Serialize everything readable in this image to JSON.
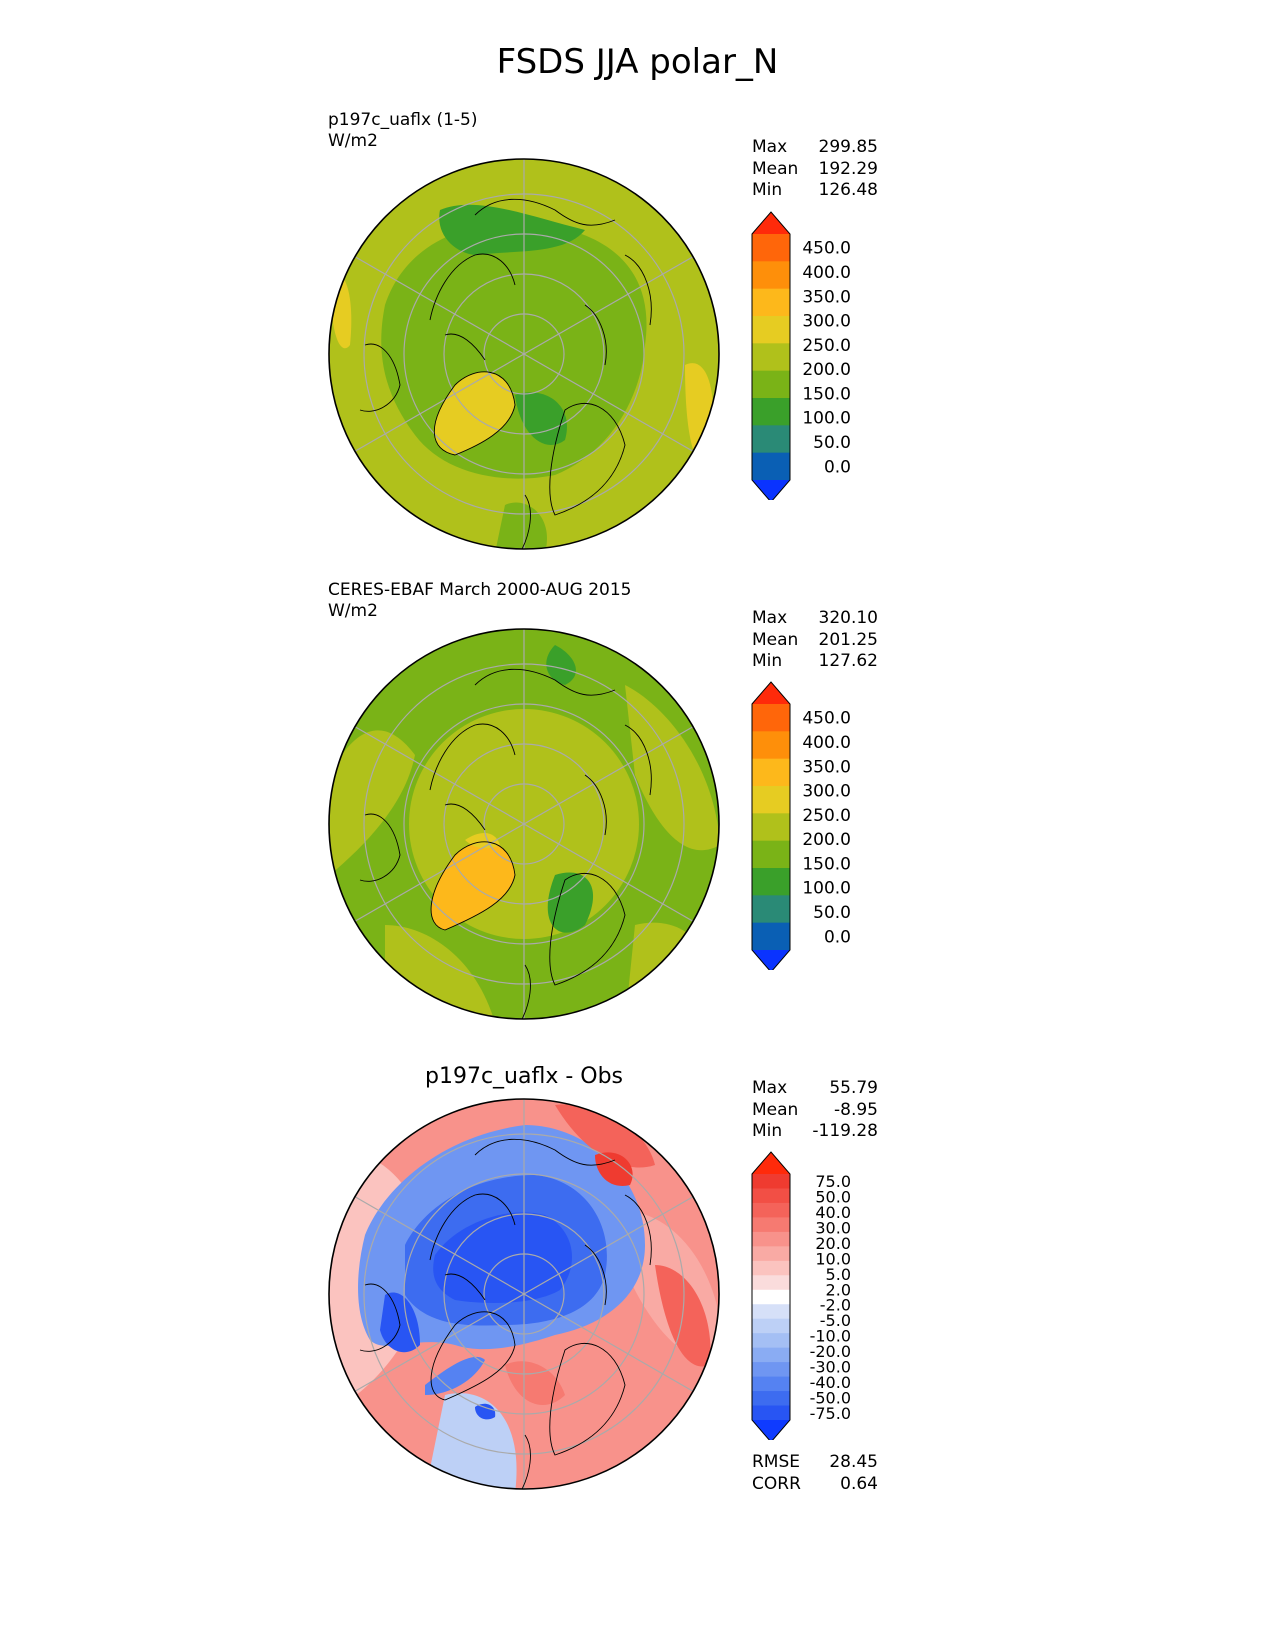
{
  "figure": {
    "title": "FSDS JJA polar_N"
  },
  "colors": {
    "abs_levels": [
      "#0a33ff",
      "#0a5fb4",
      "#2a8a76",
      "#3aa02a",
      "#7ab317",
      "#b0c11b",
      "#e6cc22",
      "#fdb81b",
      "#fe8f0a",
      "#ff660a",
      "#ff2a0a"
    ],
    "diff_levels": [
      "#0f3bff",
      "#2855f3",
      "#3d6cf0",
      "#5582f2",
      "#6f96f2",
      "#8aacf3",
      "#a4bff4",
      "#bdd0f6",
      "#d6e0f8",
      "#ffffff",
      "#fadcdc",
      "#fbc3bf",
      "#f9aaa4",
      "#f8928b",
      "#f67a71",
      "#f4635a",
      "#f24f45",
      "#ef3b30",
      "#ff2a0a"
    ],
    "land_outline": "#000000",
    "graticule": "#aaaaaa"
  },
  "panels": [
    {
      "id": "test",
      "title_line1": "p197c_uaflx (1-5)",
      "title_line2": "W/m2",
      "stats": {
        "max_label": "Max",
        "max": "299.85",
        "mean_label": "Mean",
        "mean": "192.29",
        "min_label": "Min",
        "min": "126.48"
      },
      "colorbar_ticks": [
        "450.0",
        "400.0",
        "350.0",
        "300.0",
        "250.0",
        "200.0",
        "150.0",
        "100.0",
        "50.0",
        "0.0"
      ]
    },
    {
      "id": "reference",
      "title_line1": "CERES-EBAF March 2000-AUG 2015",
      "title_line2": "W/m2",
      "stats": {
        "max_label": "Max",
        "max": "320.10",
        "mean_label": "Mean",
        "mean": "201.25",
        "min_label": "Min",
        "min": "127.62"
      },
      "colorbar_ticks": [
        "450.0",
        "400.0",
        "350.0",
        "300.0",
        "250.0",
        "200.0",
        "150.0",
        "100.0",
        "50.0",
        "0.0"
      ]
    },
    {
      "id": "difference",
      "title": "p197c_uaflx - Obs",
      "stats": {
        "max_label": "Max",
        "max": "55.79",
        "mean_label": "Mean",
        "mean": "-8.95",
        "min_label": "Min",
        "min": "-119.28"
      },
      "colorbar_ticks": [
        "75.0",
        "50.0",
        "40.0",
        "30.0",
        "20.0",
        "10.0",
        "5.0",
        "2.0",
        "-2.0",
        "-5.0",
        "-10.0",
        "-20.0",
        "-30.0",
        "-40.0",
        "-50.0",
        "-75.0"
      ],
      "metrics": {
        "rmse_label": "RMSE",
        "rmse": "28.45",
        "corr_label": "CORR",
        "corr": "0.64"
      }
    }
  ],
  "chart_data": [
    {
      "type": "heatmap",
      "projection": "north-polar-stereographic",
      "title": "p197c_uaflx (1-5)",
      "units": "W/m2",
      "max": 299.85,
      "mean": 192.29,
      "min": 126.48,
      "contour_levels": [
        0,
        50,
        100,
        150,
        200,
        250,
        300,
        350,
        400,
        450
      ],
      "colorbar_extend": "both"
    },
    {
      "type": "heatmap",
      "projection": "north-polar-stereographic",
      "title": "CERES-EBAF March 2000-AUG 2015",
      "units": "W/m2",
      "max": 320.1,
      "mean": 201.25,
      "min": 127.62,
      "contour_levels": [
        0,
        50,
        100,
        150,
        200,
        250,
        300,
        350,
        400,
        450
      ],
      "colorbar_extend": "both"
    },
    {
      "type": "heatmap",
      "projection": "north-polar-stereographic",
      "title": "p197c_uaflx - Obs",
      "max": 55.79,
      "mean": -8.95,
      "min": -119.28,
      "contour_levels": [
        -75,
        -50,
        -40,
        -30,
        -20,
        -10,
        -5,
        -2,
        2,
        5,
        10,
        20,
        30,
        40,
        50,
        75
      ],
      "colorbar_extend": "both",
      "rmse": 28.45,
      "corr": 0.64
    }
  ]
}
